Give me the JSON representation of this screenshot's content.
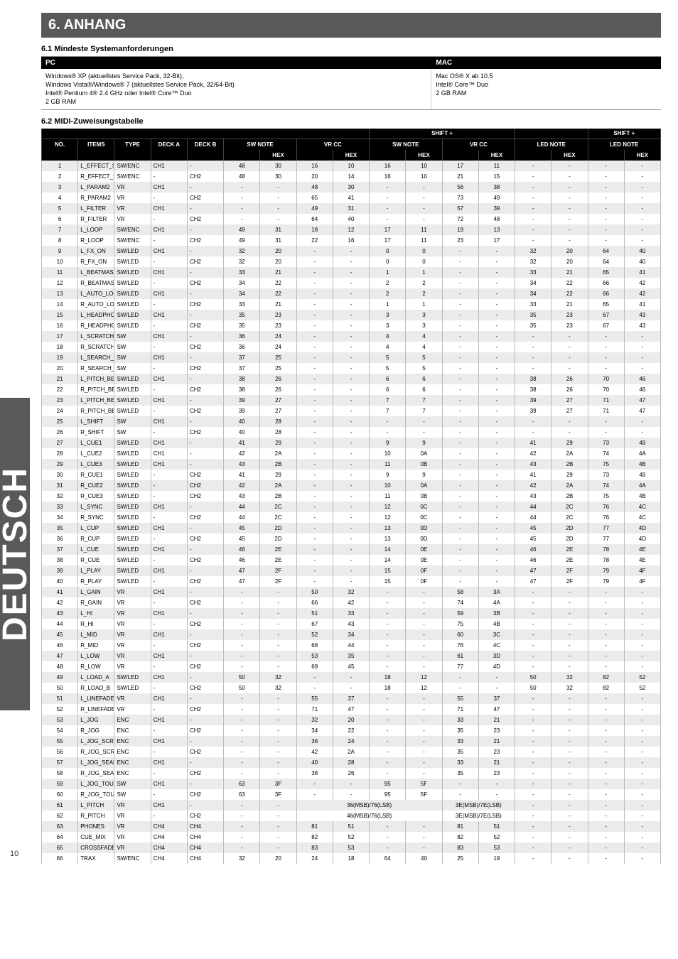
{
  "side_label": "DEUTSCH",
  "page_number": "10",
  "anhang": {
    "title": "6. ANHANG",
    "sys_req_title": "6.1 Mindeste Systemanforderungen",
    "pc_label": "PC",
    "mac_label": "MAC",
    "pc_text": "Windows® XP (aktuellstes Service Pack, 32-Bit),\nWindows Vista®/Windows® 7 (aktuellstes Service Pack, 32/64-Bit)\nIntel® Pentium 4® 2.4 GHz oder Intel® Core™ Duo\n2 GB RAM",
    "mac_text": "Mac OS® X ab 10.5\nIntel® Core™ Duo\n2 GB RAM",
    "midi_title": "6.2 MIDI-Zuweisungstabelle"
  },
  "midi": {
    "group_headers": [
      "",
      "",
      "",
      "",
      "",
      "",
      "",
      "",
      "",
      "SHIFT +",
      "",
      "",
      "",
      "SHIFT +",
      ""
    ],
    "main_headers": [
      "NO.",
      "ITEMS",
      "TYPE",
      "DECK A",
      "DECK B",
      "SW NOTE",
      "",
      "VR CC",
      "",
      "SW NOTE",
      "",
      "VR CC",
      "",
      "LED NOTE",
      "",
      "LED NOTE",
      ""
    ],
    "sub_headers": [
      "",
      "",
      "",
      "",
      "",
      "",
      "HEX",
      "",
      "HEX",
      "",
      "HEX",
      "",
      "HEX",
      "",
      "HEX",
      "",
      "HEX"
    ],
    "rows": [
      [
        "1",
        "L_EFFECT_SELECT",
        "SW/ENC",
        "CH1",
        "-",
        "48",
        "30",
        "16",
        "10",
        "16",
        "10",
        "17",
        "11",
        "-",
        "-",
        "-",
        "-"
      ],
      [
        "2",
        "R_EFFECT_SELECT",
        "SW/ENC",
        "-",
        "CH2",
        "48",
        "30",
        "20",
        "14",
        "16",
        "10",
        "21",
        "15",
        "-",
        "-",
        "-",
        "-"
      ],
      [
        "3",
        "L_PARAM2",
        "VR",
        "CH1",
        "-",
        "-",
        "-",
        "48",
        "30",
        "-",
        "-",
        "56",
        "38",
        "-",
        "-",
        "-",
        "-"
      ],
      [
        "4",
        "R_PARAM2",
        "VR",
        "-",
        "CH2",
        "-",
        "-",
        "65",
        "41",
        "-",
        "-",
        "73",
        "49",
        "-",
        "-",
        "-",
        "-"
      ],
      [
        "5",
        "L_FILTER",
        "VR",
        "CH1",
        "-",
        "-",
        "-",
        "49",
        "31",
        "-",
        "-",
        "57",
        "39",
        "-",
        "-",
        "-",
        "-"
      ],
      [
        "6",
        "R_FILTER",
        "VR",
        "-",
        "CH2",
        "-",
        "-",
        "64",
        "40",
        "-",
        "-",
        "72",
        "48",
        "-",
        "-",
        "-",
        "-"
      ],
      [
        "7",
        "L_LOOP",
        "SW/ENC",
        "CH1",
        "-",
        "49",
        "31",
        "18",
        "12",
        "17",
        "11",
        "19",
        "13",
        "-",
        "-",
        "-",
        "-"
      ],
      [
        "8",
        "R_LOOP",
        "SW/ENC",
        "-",
        "CH2",
        "49",
        "31",
        "22",
        "16",
        "17",
        "11",
        "23",
        "17",
        "-",
        "-",
        "-",
        "-"
      ],
      [
        "9",
        "L_FX_ON",
        "SW/LED",
        "CH1",
        "-",
        "32",
        "20",
        "-",
        "-",
        "0",
        "0",
        "-",
        "-",
        "32",
        "20",
        "64",
        "40"
      ],
      [
        "10",
        "R_FX_ON",
        "SW/LED",
        "-",
        "CH2",
        "32",
        "20",
        "-",
        "-",
        "0",
        "0",
        "-",
        "-",
        "32",
        "20",
        "64",
        "40"
      ],
      [
        "11",
        "L_BEATMASH",
        "SW/LED",
        "CH1",
        "-",
        "33",
        "21",
        "-",
        "-",
        "1",
        "1",
        "-",
        "-",
        "33",
        "21",
        "65",
        "41"
      ],
      [
        "12",
        "R_BEATMASH",
        "SW/LED",
        "-",
        "CH2",
        "34",
        "22",
        "-",
        "-",
        "2",
        "2",
        "-",
        "-",
        "34",
        "22",
        "66",
        "42"
      ],
      [
        "13",
        "L_AUTO_LOOP",
        "SW/LED",
        "CH1",
        "-",
        "34",
        "22",
        "-",
        "-",
        "2",
        "2",
        "-",
        "-",
        "34",
        "22",
        "66",
        "42"
      ],
      [
        "14",
        "R_AUTO_LOOP",
        "SW/LED",
        "-",
        "CH2",
        "33",
        "21",
        "-",
        "-",
        "1",
        "1",
        "-",
        "-",
        "33",
        "21",
        "65",
        "41"
      ],
      [
        "15",
        "L_HEADPHONE",
        "SW/LED",
        "CH1",
        "-",
        "35",
        "23",
        "-",
        "-",
        "3",
        "3",
        "-",
        "-",
        "35",
        "23",
        "67",
        "43"
      ],
      [
        "16",
        "R_HEADPHONE",
        "SW/LED",
        "-",
        "CH2",
        "35",
        "23",
        "-",
        "-",
        "3",
        "3",
        "-",
        "-",
        "35",
        "23",
        "67",
        "43"
      ],
      [
        "17",
        "L_SCRATCH_MODE",
        "SW",
        "CH1",
        "-",
        "36",
        "24",
        "-",
        "-",
        "4",
        "4",
        "-",
        "-",
        "-",
        "-",
        "-",
        "-"
      ],
      [
        "18",
        "R_SCRATCH_MODE",
        "SW",
        "-",
        "CH2",
        "36",
        "24",
        "-",
        "-",
        "4",
        "4",
        "-",
        "-",
        "-",
        "-",
        "-",
        "-"
      ],
      [
        "19",
        "L_SEARCH_MODE",
        "SW",
        "CH1",
        "-",
        "37",
        "25",
        "-",
        "-",
        "5",
        "5",
        "-",
        "-",
        "-",
        "-",
        "-",
        "-"
      ],
      [
        "20",
        "R_SEARCH_MODE",
        "SW",
        "-",
        "CH2",
        "37",
        "25",
        "-",
        "-",
        "5",
        "5",
        "-",
        "-",
        "-",
        "-",
        "-",
        "-"
      ],
      [
        "21",
        "L_PITCH_BEND-",
        "SW/LED",
        "CH1",
        "-",
        "38",
        "26",
        "-",
        "-",
        "6",
        "6",
        "-",
        "-",
        "38",
        "26",
        "70",
        "46"
      ],
      [
        "22",
        "R_PITCH_BEND-",
        "SW/LED",
        "-",
        "CH2",
        "38",
        "26",
        "-",
        "-",
        "6",
        "6",
        "-",
        "-",
        "38",
        "26",
        "70",
        "46"
      ],
      [
        "23",
        "L_PITCH_BEND+",
        "SW/LED",
        "CH1",
        "-",
        "39",
        "27",
        "-",
        "-",
        "7",
        "7",
        "-",
        "-",
        "39",
        "27",
        "71",
        "47"
      ],
      [
        "24",
        "R_PITCH_BEND+",
        "SW/LED",
        "-",
        "CH2",
        "39",
        "27",
        "-",
        "-",
        "7",
        "7",
        "-",
        "-",
        "39",
        "27",
        "71",
        "47"
      ],
      [
        "25",
        "L_SHIFT",
        "SW",
        "CH1",
        "-",
        "40",
        "28",
        "-",
        "-",
        "-",
        "-",
        "-",
        "-",
        "-",
        "-",
        "-",
        "-"
      ],
      [
        "26",
        "R_SHIFT",
        "SW",
        "-",
        "CH2",
        "40",
        "28",
        "-",
        "-",
        "-",
        "-",
        "-",
        "-",
        "-",
        "-",
        "-",
        "-"
      ],
      [
        "27",
        "L_CUE1",
        "SW/LED",
        "CH1",
        "-",
        "41",
        "29",
        "-",
        "-",
        "9",
        "9",
        "-",
        "-",
        "41",
        "29",
        "73",
        "49"
      ],
      [
        "28",
        "L_CUE2",
        "SW/LED",
        "CH1",
        "-",
        "42",
        "2A",
        "-",
        "-",
        "10",
        "0A",
        "-",
        "-",
        "42",
        "2A",
        "74",
        "4A"
      ],
      [
        "29",
        "L_CUE3",
        "SW/LED",
        "CH1",
        "-",
        "43",
        "2B",
        "-",
        "-",
        "11",
        "0B",
        "-",
        "-",
        "43",
        "2B",
        "75",
        "4B"
      ],
      [
        "30",
        "R_CUE1",
        "SW/LED",
        "-",
        "CH2",
        "41",
        "29",
        "-",
        "-",
        "9",
        "9",
        "-",
        "-",
        "41",
        "29",
        "73",
        "49"
      ],
      [
        "31",
        "R_CUE2",
        "SW/LED",
        "-",
        "CH2",
        "42",
        "2A",
        "-",
        "-",
        "10",
        "0A",
        "-",
        "-",
        "42",
        "2A",
        "74",
        "4A"
      ],
      [
        "32",
        "R_CUE3",
        "SW/LED",
        "-",
        "CH2",
        "43",
        "2B",
        "-",
        "-",
        "11",
        "0B",
        "-",
        "-",
        "43",
        "2B",
        "75",
        "4B"
      ],
      [
        "33",
        "L_SYNC",
        "SW/LED",
        "CH1",
        "-",
        "44",
        "2C",
        "-",
        "-",
        "12",
        "0C",
        "-",
        "-",
        "44",
        "2C",
        "76",
        "4C"
      ],
      [
        "34",
        "R_SYNC",
        "SW/LED",
        "-",
        "CH2",
        "44",
        "2C",
        "-",
        "-",
        "12",
        "0C",
        "-",
        "-",
        "44",
        "2C",
        "76",
        "4C"
      ],
      [
        "35",
        "L_CUP",
        "SW/LED",
        "CH1",
        "-",
        "45",
        "2D",
        "-",
        "-",
        "13",
        "0D",
        "-",
        "-",
        "45",
        "2D",
        "77",
        "4D"
      ],
      [
        "36",
        "R_CUP",
        "SW/LED",
        "-",
        "CH2",
        "45",
        "2D",
        "-",
        "-",
        "13",
        "0D",
        "-",
        "-",
        "45",
        "2D",
        "77",
        "4D"
      ],
      [
        "37",
        "L_CUE",
        "SW/LED",
        "CH1",
        "-",
        "46",
        "2E",
        "-",
        "-",
        "14",
        "0E",
        "-",
        "-",
        "46",
        "2E",
        "78",
        "4E"
      ],
      [
        "38",
        "R_CUE",
        "SW/LED",
        "-",
        "CH2",
        "46",
        "2E",
        "-",
        "-",
        "14",
        "0E",
        "-",
        "-",
        "46",
        "2E",
        "78",
        "4E"
      ],
      [
        "39",
        "L_PLAY",
        "SW/LED",
        "CH1",
        "-",
        "47",
        "2F",
        "-",
        "-",
        "15",
        "0F",
        "-",
        "-",
        "47",
        "2F",
        "79",
        "4F"
      ],
      [
        "40",
        "R_PLAY",
        "SW/LED",
        "-",
        "CH2",
        "47",
        "2F",
        "-",
        "-",
        "15",
        "0F",
        "-",
        "-",
        "47",
        "2F",
        "79",
        "4F"
      ],
      [
        "41",
        "L_GAIN",
        "VR",
        "CH1",
        "-",
        "-",
        "-",
        "50",
        "32",
        "-",
        "-",
        "58",
        "3A",
        "-",
        "-",
        "-",
        "-"
      ],
      [
        "42",
        "R_GAIN",
        "VR",
        "-",
        "CH2",
        "-",
        "-",
        "66",
        "42",
        "-",
        "-",
        "74",
        "4A",
        "-",
        "-",
        "-",
        "-"
      ],
      [
        "43",
        "L_HI",
        "VR",
        "CH1",
        "-",
        "-",
        "-",
        "51",
        "33",
        "-",
        "-",
        "59",
        "3B",
        "-",
        "-",
        "-",
        "-"
      ],
      [
        "44",
        "R_HI",
        "VR",
        "-",
        "CH2",
        "-",
        "-",
        "67",
        "43",
        "-",
        "-",
        "75",
        "4B",
        "-",
        "-",
        "-",
        "-"
      ],
      [
        "45",
        "L_MID",
        "VR",
        "CH1",
        "-",
        "-",
        "-",
        "52",
        "34",
        "-",
        "-",
        "60",
        "3C",
        "-",
        "-",
        "-",
        "-"
      ],
      [
        "46",
        "R_MID",
        "VR",
        "-",
        "CH2",
        "-",
        "-",
        "68",
        "44",
        "-",
        "-",
        "76",
        "4C",
        "-",
        "-",
        "-",
        "-"
      ],
      [
        "47",
        "L_LOW",
        "VR",
        "CH1",
        "-",
        "-",
        "-",
        "53",
        "35",
        "-",
        "-",
        "61",
        "3D",
        "-",
        "-",
        "-",
        "-"
      ],
      [
        "48",
        "R_LOW",
        "VR",
        "-",
        "CH2",
        "-",
        "-",
        "69",
        "45",
        "-",
        "-",
        "77",
        "4D",
        "-",
        "-",
        "-",
        "-"
      ],
      [
        "49",
        "L_LOAD_A",
        "SW/LED",
        "CH1",
        "-",
        "50",
        "32",
        "-",
        "-",
        "18",
        "12",
        "-",
        "-",
        "50",
        "32",
        "82",
        "52"
      ],
      [
        "50",
        "R_LOAD_B",
        "SW/LED",
        "-",
        "CH2",
        "50",
        "32",
        "-",
        "-",
        "18",
        "12",
        "-",
        "-",
        "50",
        "32",
        "82",
        "52"
      ],
      [
        "51",
        "L_LINEFADER",
        "VR",
        "CH1",
        "-",
        "-",
        "-",
        "55",
        "37",
        "-",
        "-",
        "55",
        "37",
        "-",
        "-",
        "-",
        "-"
      ],
      [
        "52",
        "R_LINEFADER",
        "VR",
        "-",
        "CH2",
        "-",
        "-",
        "71",
        "47",
        "-",
        "-",
        "71",
        "47",
        "-",
        "-",
        "-",
        "-"
      ],
      [
        "53",
        "L_JOG",
        "ENC",
        "CH1",
        "-",
        "-",
        "-",
        "32",
        "20",
        "-",
        "-",
        "33",
        "21",
        "-",
        "-",
        "-",
        "-"
      ],
      [
        "54",
        "R_JOG",
        "ENC",
        "-",
        "CH2",
        "-",
        "-",
        "34",
        "22",
        "-",
        "-",
        "35",
        "23",
        "-",
        "-",
        "-",
        "-"
      ],
      [
        "55",
        "L_JOG_SCRATCH",
        "ENC",
        "CH1",
        "-",
        "-",
        "-",
        "36",
        "24",
        "-",
        "-",
        "33",
        "21",
        "-",
        "-",
        "-",
        "-"
      ],
      [
        "56",
        "R_JOG_SCRATCH",
        "ENC",
        "-",
        "CH2",
        "-",
        "-",
        "42",
        "2A",
        "-",
        "-",
        "35",
        "23",
        "-",
        "-",
        "-",
        "-"
      ],
      [
        "57",
        "L_JOG_SEARCH",
        "ENC",
        "CH1",
        "-",
        "-",
        "-",
        "40",
        "28",
        "-",
        "-",
        "33",
        "21",
        "-",
        "-",
        "-",
        "-"
      ],
      [
        "58",
        "R_JOG_SEARCH",
        "ENC",
        "-",
        "CH2",
        "-",
        "-",
        "38",
        "26",
        "-",
        "-",
        "35",
        "23",
        "-",
        "-",
        "-",
        "-"
      ],
      [
        "59",
        "L_JOG_TOUCH",
        "SW",
        "CH1",
        "-",
        "63",
        "3F",
        "-",
        "-",
        "95",
        "5F",
        "-",
        "-",
        "-",
        "-",
        "-",
        "-"
      ],
      [
        "60",
        "R_JOG_TOUCH",
        "SW",
        "-",
        "CH2",
        "63",
        "3F",
        "-",
        "-",
        "95",
        "5F",
        "-",
        "-",
        "-",
        "-",
        "-",
        "-"
      ],
      [
        "61",
        "L_PITCH",
        "VR",
        "CH1",
        "-",
        "-",
        "-",
        "",
        "36(MSB)/76(LSB)",
        "",
        "",
        "3E(MSB)/7E(LSB)",
        "",
        "-",
        "-",
        "-",
        "-"
      ],
      [
        "62",
        "R_PITCH",
        "VR",
        "-",
        "CH2",
        "-",
        "-",
        "",
        "46(MSB)/76(LSB)",
        "",
        "",
        "3E(MSB)/7E(LSB)",
        "",
        "-",
        "-",
        "-",
        "-"
      ],
      [
        "63",
        "PHONES",
        "VR",
        "CH4",
        "CH4",
        "-",
        "-",
        "81",
        "51",
        "-",
        "-",
        "81",
        "51",
        "-",
        "-",
        "-",
        "-"
      ],
      [
        "64",
        "CUE_MIX",
        "VR",
        "CH4",
        "CH4",
        "-",
        "-",
        "82",
        "52",
        "-",
        "-",
        "82",
        "52",
        "-",
        "-",
        "-",
        "-"
      ],
      [
        "65",
        "CROSSFADER",
        "VR",
        "CH4",
        "CH4",
        "-",
        "-",
        "83",
        "53",
        "-",
        "-",
        "83",
        "53",
        "-",
        "-",
        "-",
        "-"
      ],
      [
        "66",
        "TRAX",
        "SW/ENC",
        "CH4",
        "CH4",
        "32",
        "20",
        "24",
        "18",
        "64",
        "40",
        "25",
        "19",
        "-",
        "-",
        "-",
        "-"
      ]
    ]
  }
}
